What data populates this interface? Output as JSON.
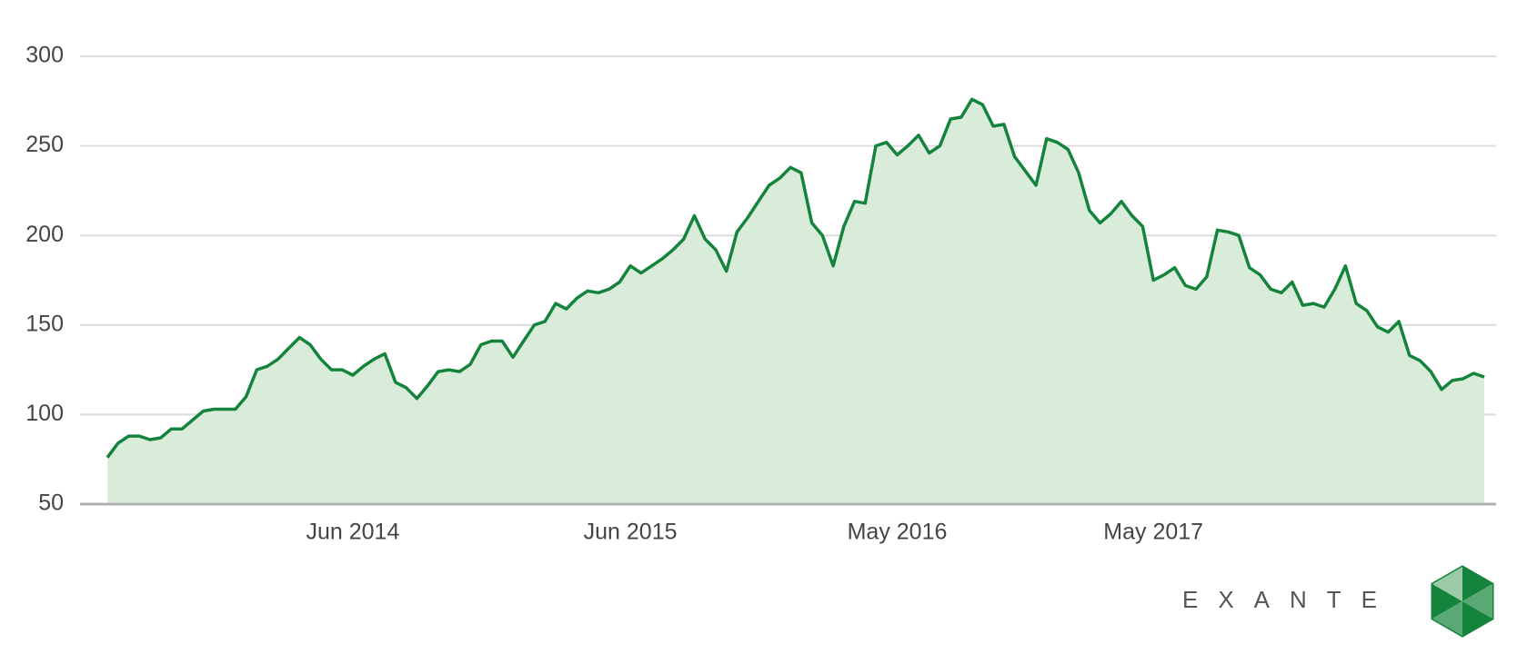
{
  "chart_data": {
    "type": "area",
    "categories": [
      null,
      null,
      null,
      null,
      null,
      null,
      null,
      null,
      null,
      null,
      null,
      null,
      null,
      null,
      null,
      null,
      null,
      null,
      null,
      null,
      null,
      null,
      null,
      "Jun 2014",
      null,
      null,
      null,
      null,
      null,
      null,
      null,
      null,
      null,
      null,
      null,
      null,
      null,
      null,
      null,
      null,
      null,
      null,
      null,
      null,
      null,
      null,
      null,
      null,
      null,
      "Jun 2015",
      null,
      null,
      null,
      null,
      null,
      null,
      null,
      null,
      null,
      null,
      null,
      null,
      null,
      null,
      null,
      null,
      null,
      null,
      null,
      null,
      null,
      null,
      null,
      null,
      "May 2016",
      null,
      null,
      null,
      null,
      null,
      null,
      null,
      null,
      null,
      null,
      null,
      null,
      null,
      null,
      null,
      null,
      null,
      null,
      null,
      null,
      null,
      null,
      null,
      "May 2017",
      null,
      null,
      null,
      null,
      null,
      null,
      null,
      null,
      null,
      null,
      null,
      null,
      null,
      null,
      null,
      null,
      null,
      null,
      null,
      null,
      null,
      null,
      null,
      null,
      null,
      null,
      null,
      null,
      null,
      null,
      null
    ],
    "values": [
      76,
      84,
      88,
      88,
      86,
      87,
      92,
      92,
      97,
      102,
      103,
      103,
      103,
      110,
      125,
      127,
      131,
      137,
      143,
      139,
      131,
      125,
      125,
      122,
      127,
      131,
      134,
      118,
      115,
      109,
      116,
      124,
      125,
      124,
      128,
      139,
      141,
      141,
      132,
      141,
      150,
      152,
      162,
      159,
      165,
      169,
      168,
      170,
      174,
      183,
      179,
      183,
      187,
      192,
      198,
      211,
      198,
      192,
      180,
      202,
      210,
      219,
      228,
      232,
      238,
      235,
      207,
      200,
      183,
      205,
      219,
      218,
      250,
      252,
      245,
      250,
      256,
      246,
      250,
      265,
      266,
      276,
      273,
      261,
      262,
      244,
      236,
      228,
      254,
      252,
      248,
      235,
      214,
      207,
      212,
      219,
      211,
      205,
      175,
      178,
      182,
      172,
      170,
      177,
      203,
      202,
      200,
      182,
      178,
      170,
      168,
      174,
      161,
      162,
      160,
      170,
      183,
      162,
      158,
      149,
      146,
      152,
      133,
      130,
      124,
      114,
      119,
      120,
      123,
      121
    ],
    "color": "#14843c",
    "fill_color": "#d9ecda",
    "ylim": [
      50,
      300
    ],
    "yticks": [
      50,
      100,
      150,
      200,
      250,
      300
    ],
    "grid": true,
    "brand": "EXANTE"
  }
}
